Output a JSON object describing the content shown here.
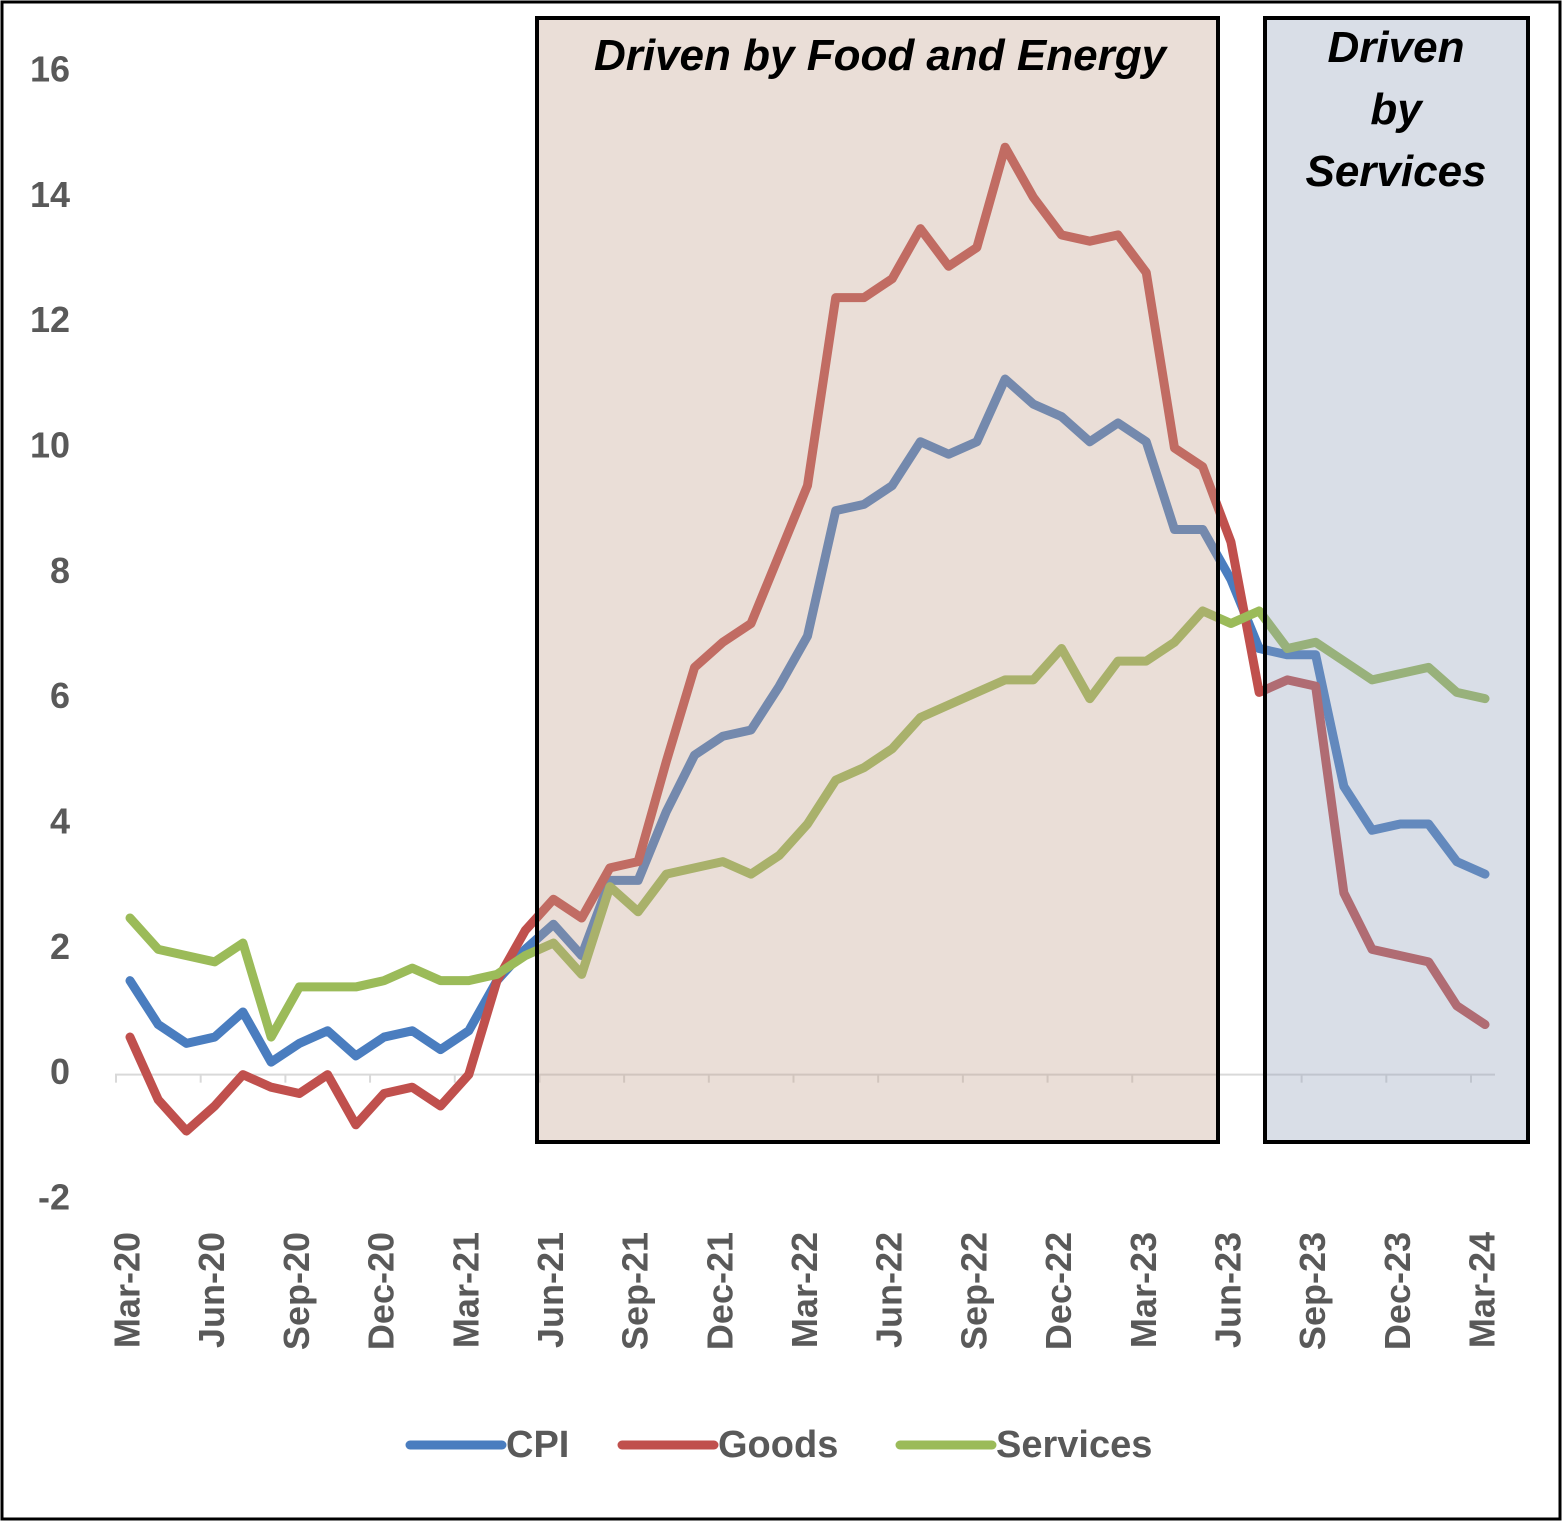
{
  "chart_data": {
    "type": "line",
    "categories": [
      "Mar-20",
      null,
      null,
      "Jun-20",
      null,
      null,
      "Sep-20",
      null,
      null,
      "Dec-20",
      null,
      null,
      "Mar-21",
      null,
      null,
      "Jun-21",
      null,
      null,
      "Sep-21",
      null,
      null,
      "Dec-21",
      null,
      null,
      "Mar-22",
      null,
      null,
      "Jun-22",
      null,
      null,
      "Sep-22",
      null,
      null,
      "Dec-22",
      null,
      null,
      "Mar-23",
      null,
      null,
      "Jun-23",
      null,
      null,
      "Sep-23",
      null,
      null,
      "Dec-23",
      null,
      null,
      "Mar-24"
    ],
    "series": [
      {
        "name": "CPI",
        "color": "#4a7dbf",
        "values": [
          1.5,
          0.8,
          0.5,
          0.6,
          1.0,
          0.2,
          0.5,
          0.7,
          0.3,
          0.6,
          0.7,
          0.4,
          0.7,
          1.5,
          2.0,
          2.4,
          1.9,
          3.1,
          3.1,
          4.2,
          5.1,
          5.4,
          5.5,
          6.2,
          7.0,
          9.0,
          9.1,
          9.4,
          10.1,
          9.9,
          10.1,
          11.1,
          10.7,
          10.5,
          10.1,
          10.4,
          10.1,
          8.7,
          8.7,
          7.9,
          6.8,
          6.7,
          6.7,
          4.6,
          3.9,
          4.0,
          4.0,
          3.4,
          3.2
        ]
      },
      {
        "name": "Goods",
        "color": "#c0504d",
        "values": [
          0.6,
          -0.4,
          -0.9,
          -0.5,
          0.0,
          -0.2,
          -0.3,
          0.0,
          -0.8,
          -0.3,
          -0.2,
          -0.5,
          0.0,
          1.5,
          2.3,
          2.8,
          2.5,
          3.3,
          3.4,
          5.0,
          6.5,
          6.9,
          7.2,
          8.3,
          9.4,
          12.4,
          12.4,
          12.7,
          13.5,
          12.9,
          13.2,
          14.8,
          14.0,
          13.4,
          13.3,
          13.4,
          12.8,
          10.0,
          9.7,
          8.5,
          6.1,
          6.3,
          6.2,
          2.9,
          2.0,
          1.9,
          1.8,
          1.1,
          0.8
        ]
      },
      {
        "name": "Services",
        "color": "#9bbb59",
        "values": [
          2.5,
          2.0,
          1.9,
          1.8,
          2.1,
          0.6,
          1.4,
          1.4,
          1.4,
          1.5,
          1.7,
          1.5,
          1.5,
          1.6,
          1.9,
          2.1,
          1.6,
          3.0,
          2.6,
          3.2,
          3.3,
          3.4,
          3.2,
          3.5,
          4.0,
          4.7,
          4.9,
          5.2,
          5.7,
          5.9,
          6.1,
          6.3,
          6.3,
          6.8,
          6.0,
          6.6,
          6.6,
          6.9,
          7.4,
          7.2,
          7.4,
          6.8,
          6.9,
          6.6,
          6.3,
          6.4,
          6.5,
          6.1,
          6.0
        ]
      }
    ],
    "ylim": [
      -2,
      16
    ],
    "yticks": [
      -2,
      0,
      2,
      4,
      6,
      8,
      10,
      12,
      14,
      16
    ],
    "grid": false,
    "legend": "bottom",
    "annotations": [
      "Driven by Food and Energy",
      "Driven by Services"
    ]
  }
}
